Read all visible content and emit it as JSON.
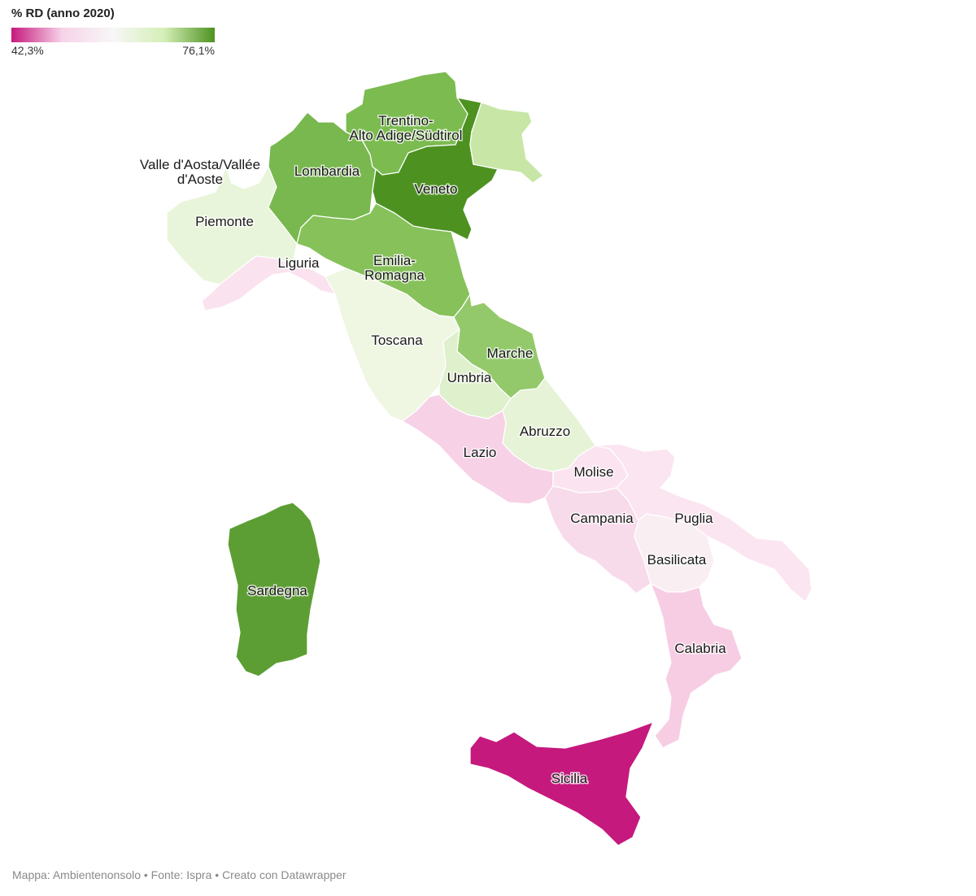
{
  "legend": {
    "title": "% RD (anno 2020)",
    "min_label": "42,3%",
    "max_label": "76,1%",
    "gradient_colors": [
      "#c5197d",
      "#f7d3e8",
      "#f7f7f7",
      "#d5efb8",
      "#4d9221"
    ]
  },
  "regions": [
    {
      "id": "valle-d-aosta",
      "label_lines": [
        "Valle d'Aosta/Vallée",
        "d'Aoste"
      ],
      "color": "#ffffff"
    },
    {
      "id": "piemonte",
      "label_lines": [
        "Piemonte"
      ],
      "color": "#e9f5da"
    },
    {
      "id": "liguria",
      "label_lines": [
        "Liguria"
      ],
      "color": "#fbe2ef"
    },
    {
      "id": "lombardia",
      "label_lines": [
        "Lombardia"
      ],
      "color": "#78b84e"
    },
    {
      "id": "trentino",
      "label_lines": [
        "Trentino-",
        "Alto Adige/Südtirol"
      ],
      "color": "#7bbb50"
    },
    {
      "id": "veneto",
      "label_lines": [
        "Veneto"
      ],
      "color": "#4d9221"
    },
    {
      "id": "friuli",
      "label_lines": [],
      "color": "#c8e6a6"
    },
    {
      "id": "emilia-romagna",
      "label_lines": [
        "Emilia-",
        "Romagna"
      ],
      "color": "#86c15a"
    },
    {
      "id": "toscana",
      "label_lines": [
        "Toscana"
      ],
      "color": "#eff6e2"
    },
    {
      "id": "marche",
      "label_lines": [
        "Marche"
      ],
      "color": "#93c96a"
    },
    {
      "id": "umbria",
      "label_lines": [
        "Umbria"
      ],
      "color": "#dff0cc"
    },
    {
      "id": "abruzzo",
      "label_lines": [
        "Abruzzo"
      ],
      "color": "#e6f3d6"
    },
    {
      "id": "lazio",
      "label_lines": [
        "Lazio"
      ],
      "color": "#f7d1e6"
    },
    {
      "id": "molise",
      "label_lines": [
        "Molise"
      ],
      "color": "#fbe4ef"
    },
    {
      "id": "campania",
      "label_lines": [
        "Campania"
      ],
      "color": "#f8dbea"
    },
    {
      "id": "puglia",
      "label_lines": [
        "Puglia"
      ],
      "color": "#fbe5f0"
    },
    {
      "id": "basilicata",
      "label_lines": [
        "Basilicata"
      ],
      "color": "#f9eef2"
    },
    {
      "id": "calabria",
      "label_lines": [
        "Calabria"
      ],
      "color": "#f7cde4"
    },
    {
      "id": "sicilia",
      "label_lines": [
        "Sicilia"
      ],
      "color": "#c5197d"
    },
    {
      "id": "sardegna",
      "label_lines": [
        "Sardegna"
      ],
      "color": "#5c9e33"
    }
  ],
  "footer": "Mappa: Ambientenonsolo • Fonte: Ispra • Creato con Datawrapper"
}
